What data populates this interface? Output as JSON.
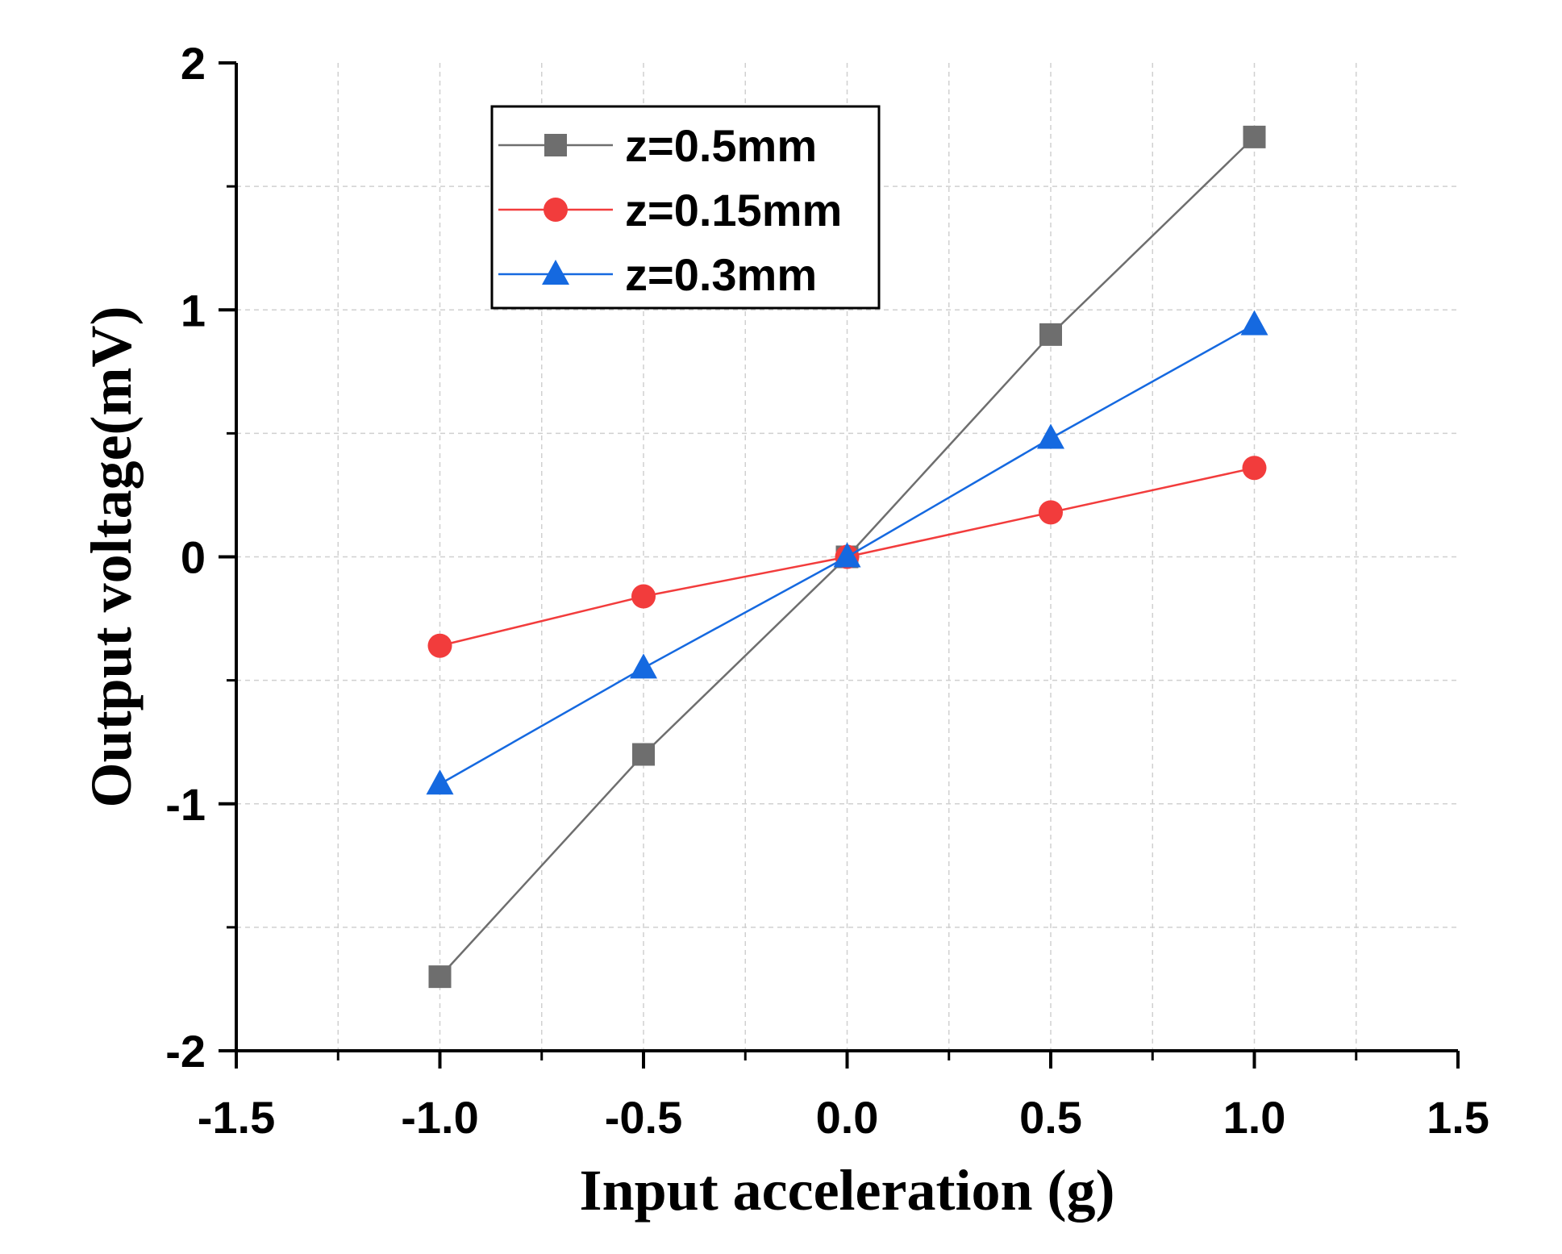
{
  "chart_data": {
    "type": "line",
    "title": "",
    "xlabel": "Input acceleration (g)",
    "ylabel": "Output voltage(mV)",
    "xlim": [
      -1.5,
      1.5
    ],
    "ylim": [
      -2,
      2
    ],
    "xticks": [
      "-1.5",
      "-1.0",
      "-0.5",
      "0.0",
      "0.5",
      "1.0",
      "1.5"
    ],
    "yticks": [
      "-2",
      "-1",
      "0",
      "1",
      "2"
    ],
    "grid": true,
    "legend_position": "top-left",
    "x": [
      -1.0,
      -0.5,
      0.0,
      0.5,
      1.0
    ],
    "series": [
      {
        "name": "z=0.5mm",
        "marker": "square",
        "color": "#6e6e6e",
        "values": [
          -1.7,
          -0.8,
          0.0,
          0.9,
          1.7
        ]
      },
      {
        "name": "z=0.15mm",
        "marker": "circle",
        "color": "#f23c3c",
        "values": [
          -0.36,
          -0.16,
          0.0,
          0.18,
          0.36
        ]
      },
      {
        "name": "z=0.3mm",
        "marker": "triangle",
        "color": "#1569e0",
        "values": [
          -0.92,
          -0.45,
          0.0,
          0.48,
          0.94
        ]
      }
    ]
  }
}
